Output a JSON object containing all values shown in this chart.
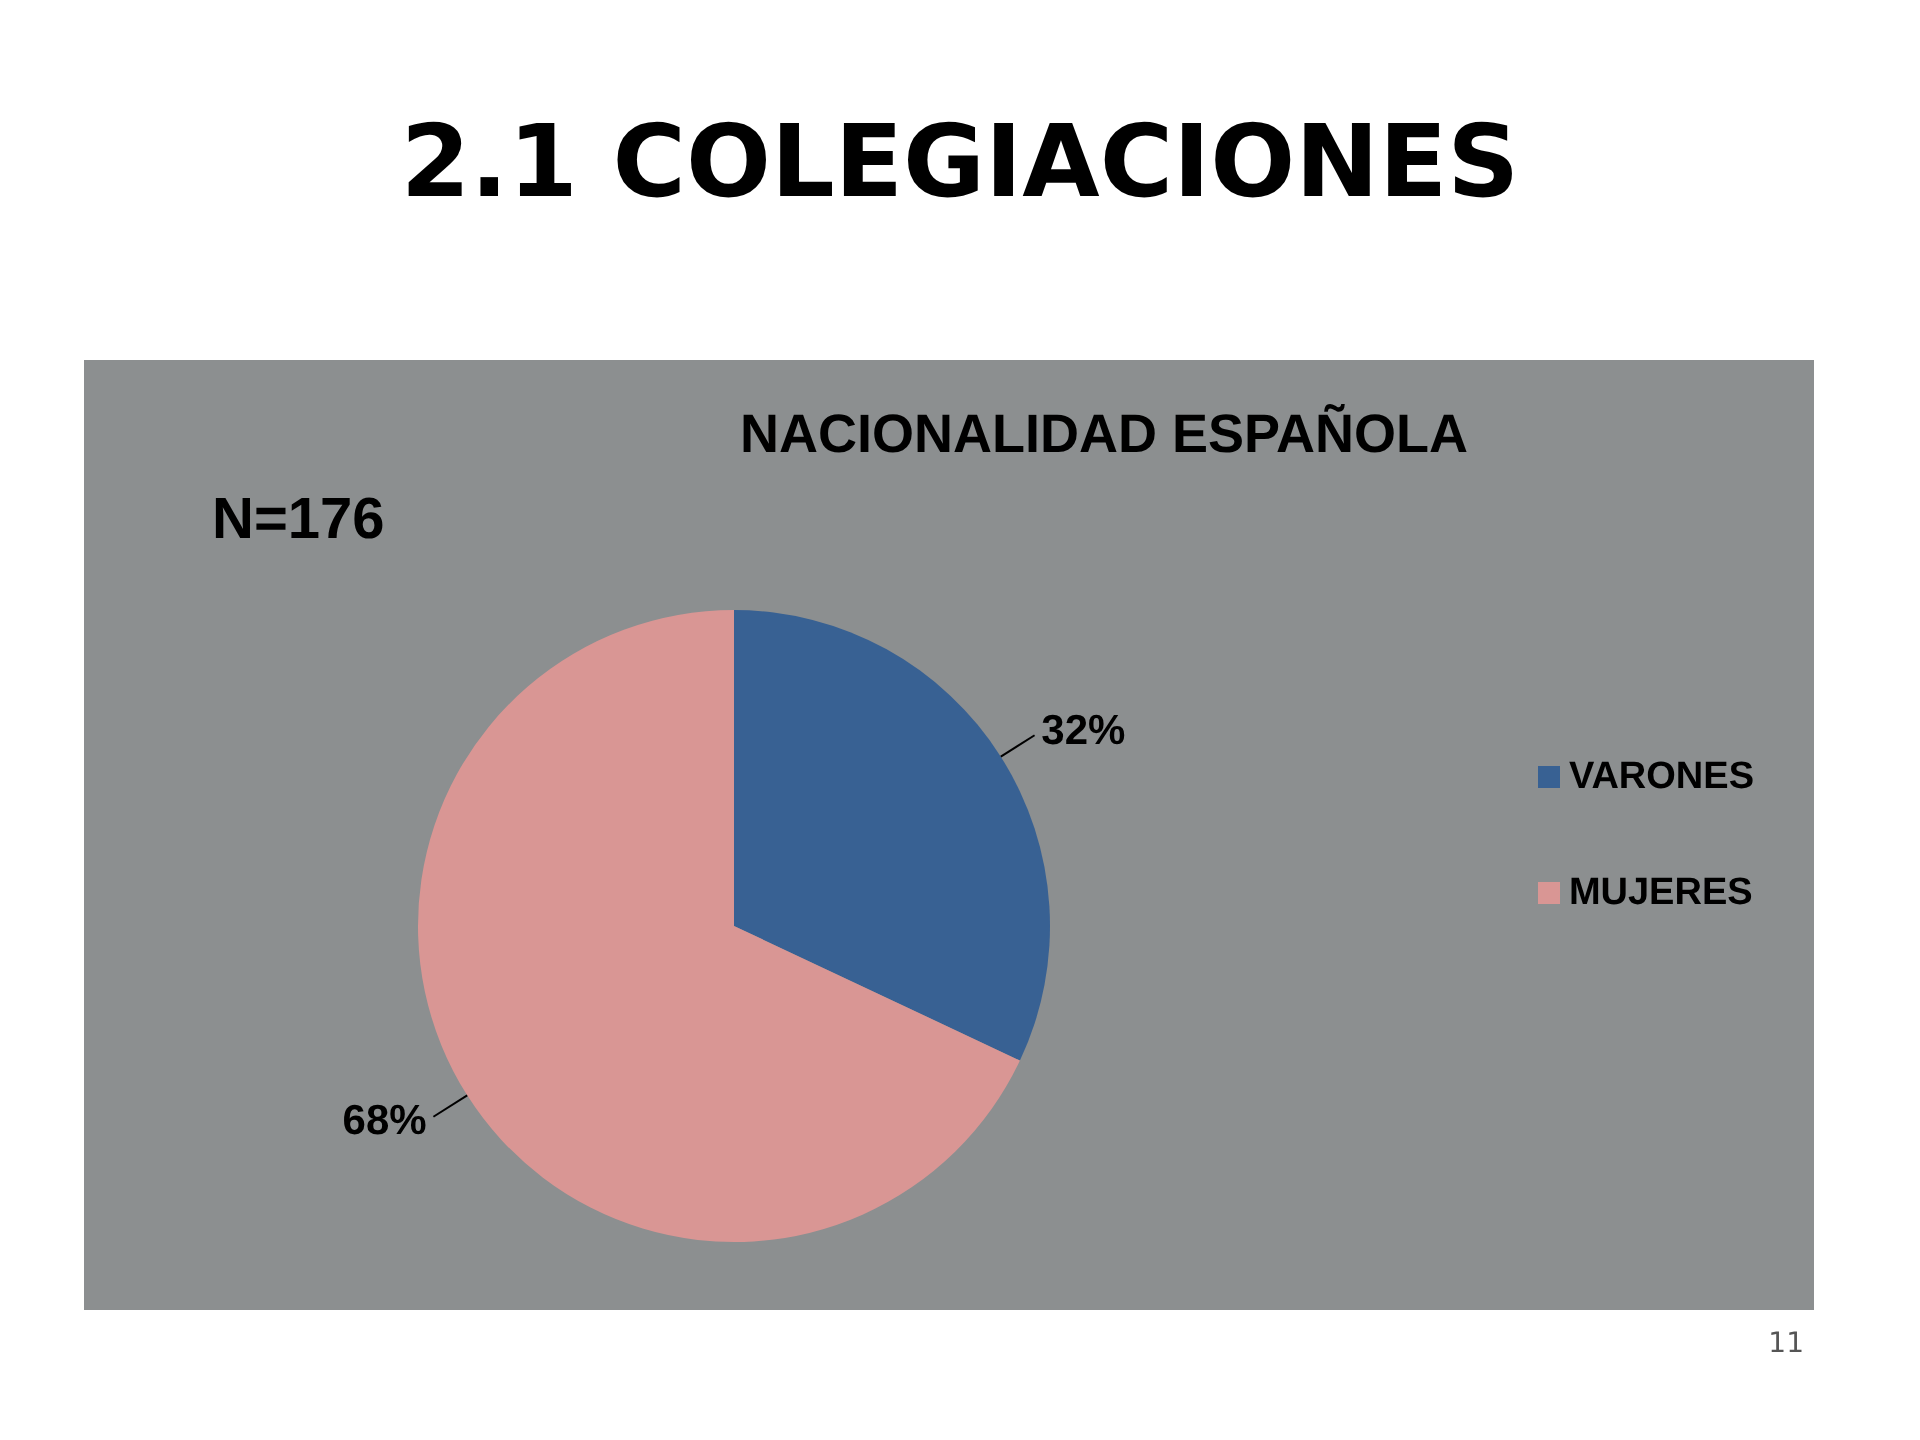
{
  "chart_data": {
    "type": "pie",
    "title": "2.1 COLEGIACIONES",
    "subtitle": "NACIONALIDAD ESPAÑOLA",
    "categories": [
      "VARONES",
      "MUJERES"
    ],
    "values": [
      32,
      68
    ],
    "colors": [
      "#386193",
      "#d99694"
    ],
    "value_labels": [
      "32%",
      "68%"
    ],
    "annotations": [
      "N=176",
      "11"
    ],
    "legend": "right"
  }
}
